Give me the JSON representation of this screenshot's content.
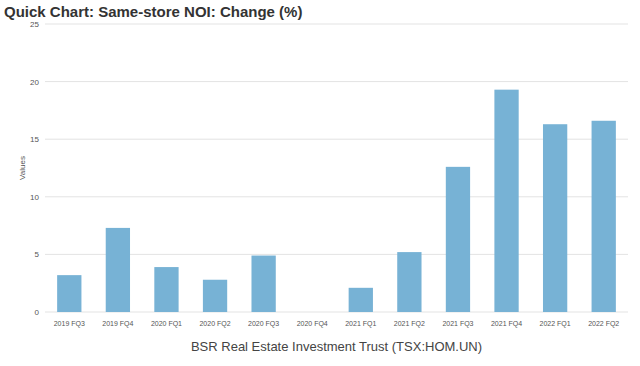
{
  "chart_data": {
    "type": "bar",
    "title": "Quick Chart: Same-store NOI: Change (%)",
    "x_label": "BSR Real Estate Investment Trust (TSX:HOM.UN)",
    "y_label": "Values",
    "categories": [
      "2019 FQ3",
      "2019 FQ4",
      "2020 FQ1",
      "2020 FQ2",
      "2020 FQ3",
      "2020 FQ4",
      "2021 FQ1",
      "2021 FQ2",
      "2021 FQ3",
      "2021 FQ4",
      "2022 FQ1",
      "2022 FQ2"
    ],
    "values": [
      3.2,
      7.3,
      3.9,
      2.8,
      4.9,
      null,
      2.1,
      5.2,
      12.6,
      19.3,
      16.3,
      16.6
    ],
    "color": "#77b2d5",
    "ylim": [
      0,
      25
    ],
    "yticks": [
      0,
      5,
      10,
      15,
      20,
      25
    ],
    "grid": true
  }
}
